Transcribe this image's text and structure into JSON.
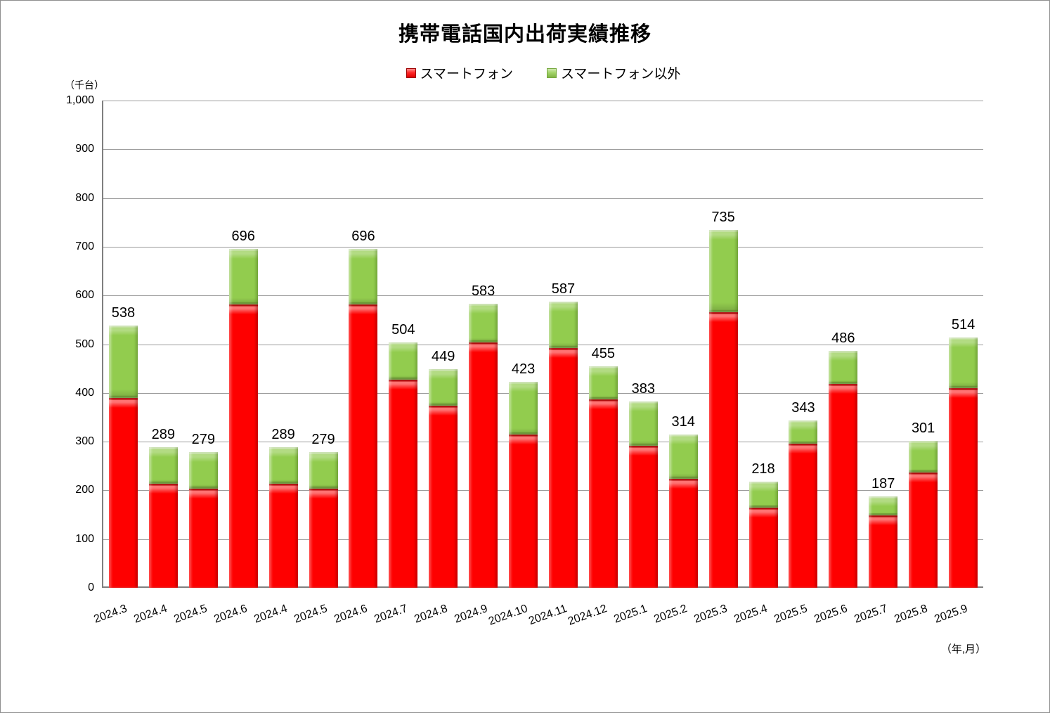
{
  "title": "携帯電話国内出荷実績推移",
  "chart_data": {
    "type": "bar",
    "stacked": true,
    "title": "携帯電話国内出荷実績推移",
    "y_unit": "（千台）",
    "x_unit": "（年,月）",
    "xlabel": "年,月",
    "ylabel": "千台",
    "ylim": [
      0,
      1000
    ],
    "y_tick_step": 100,
    "y_tick_labels": [
      "0",
      "100",
      "200",
      "300",
      "400",
      "500",
      "600",
      "700",
      "800",
      "900",
      "1,000"
    ],
    "grid": true,
    "legend_position": "top",
    "categories": [
      "2024.3",
      "2024.4",
      "2024.5",
      "2024.6",
      "2024.4",
      "2024.5",
      "2024.6",
      "2024.7",
      "2024.8",
      "2024.9",
      "2024.10",
      "2024.11",
      "2024.12",
      "2025.1",
      "2025.2",
      "2025.3",
      "2025.4",
      "2025.5",
      "2025.6",
      "2025.7",
      "2025.8",
      "2025.9"
    ],
    "series": [
      {
        "name": "スマートフォン",
        "color": "#fe0000",
        "values": [
          390,
          213,
          204,
          581,
          213,
          204,
          581,
          427,
          374,
          503,
          314,
          492,
          387,
          292,
          224,
          565,
          165,
          296,
          418,
          148,
          236,
          410
        ]
      },
      {
        "name": "スマートフォン以外",
        "color": "#92cc4e",
        "values": [
          148,
          76,
          75,
          115,
          76,
          75,
          115,
          77,
          75,
          80,
          109,
          95,
          68,
          91,
          90,
          170,
          53,
          47,
          68,
          39,
          65,
          104
        ]
      }
    ],
    "totals": [
      538,
      289,
      279,
      696,
      289,
      279,
      696,
      504,
      449,
      583,
      423,
      587,
      455,
      383,
      314,
      735,
      218,
      343,
      486,
      187,
      301,
      514
    ],
    "data_labels_shown": "totals"
  },
  "colors": {
    "smartphone": "#fe0000",
    "other": "#92cc4e",
    "gridline": "#9c9c9c",
    "axis": "#7f7f7f"
  }
}
